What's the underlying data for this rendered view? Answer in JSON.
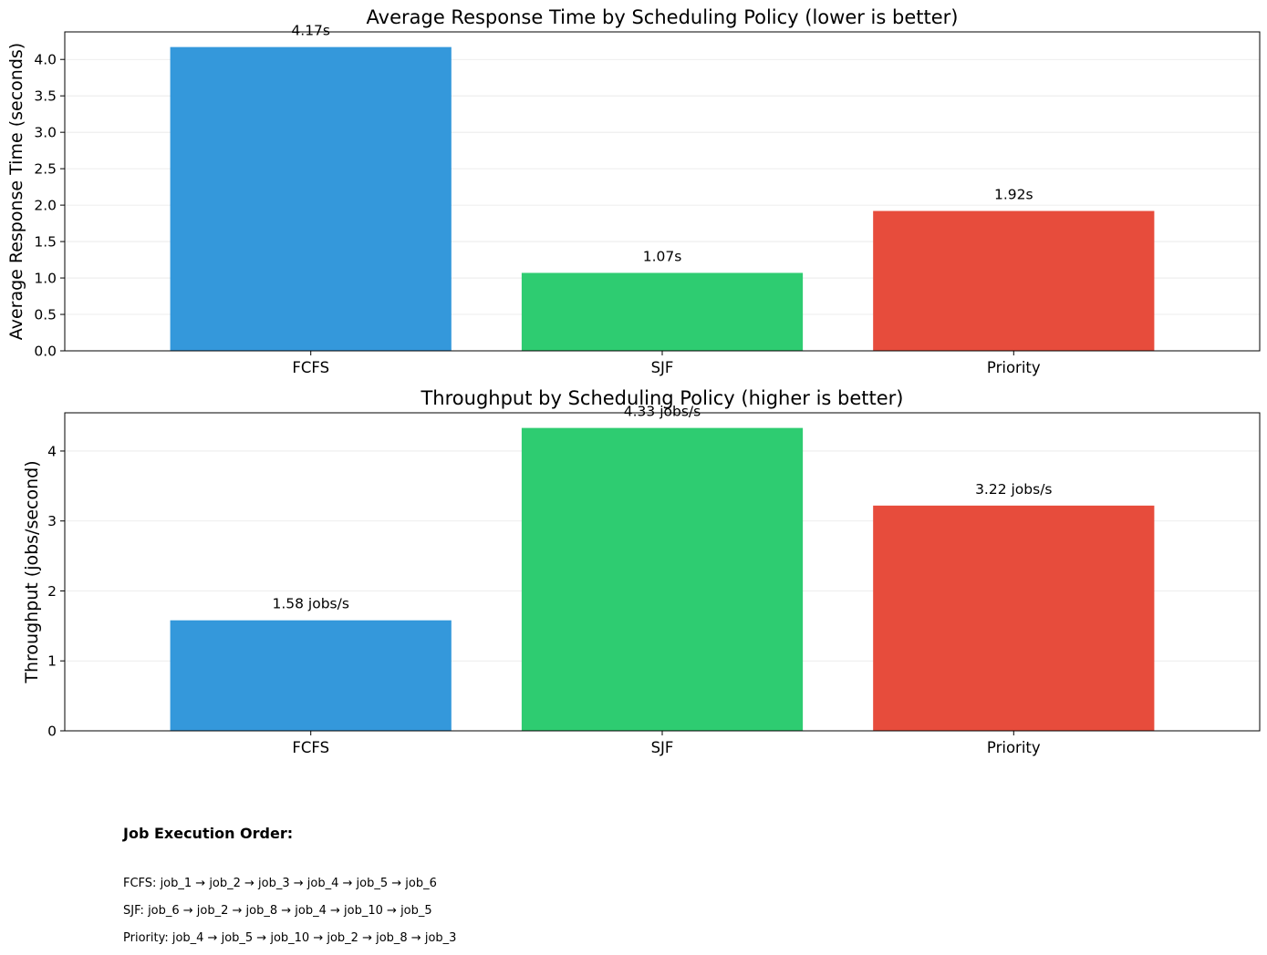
{
  "chart_data": [
    {
      "type": "bar",
      "title": "Average Response Time by Scheduling Policy (lower is better)",
      "xlabel": "",
      "ylabel": "Average Response Time (seconds)",
      "categories": [
        "FCFS",
        "SJF",
        "Priority"
      ],
      "values": [
        4.17,
        1.07,
        1.92
      ],
      "data_labels": [
        "4.17s",
        "1.07s",
        "1.92s"
      ],
      "colors": [
        "#3498db",
        "#2ecc71",
        "#e74c3c"
      ],
      "ylim": [
        0,
        4.378
      ],
      "yticks": [
        0.0,
        0.5,
        1.0,
        1.5,
        2.0,
        2.5,
        3.0,
        3.5,
        4.0
      ],
      "ytick_labels": [
        "0.0",
        "0.5",
        "1.0",
        "1.5",
        "2.0",
        "2.5",
        "3.0",
        "3.5",
        "4.0"
      ],
      "grid": "y"
    },
    {
      "type": "bar",
      "title": "Throughput by Scheduling Policy (higher is better)",
      "xlabel": "",
      "ylabel": "Throughput (jobs/second)",
      "categories": [
        "FCFS",
        "SJF",
        "Priority"
      ],
      "values": [
        1.58,
        4.33,
        3.22
      ],
      "data_labels": [
        "1.58 jobs/s",
        "4.33 jobs/s",
        "3.22 jobs/s"
      ],
      "colors": [
        "#3498db",
        "#2ecc71",
        "#e74c3c"
      ],
      "ylim": [
        0,
        4.5465
      ],
      "yticks": [
        0,
        1,
        2,
        3,
        4
      ],
      "ytick_labels": [
        "0",
        "1",
        "2",
        "3",
        "4"
      ],
      "grid": "y"
    }
  ],
  "execution_order": {
    "title": "Job Execution Order:",
    "lines": [
      "FCFS: job_1 → job_2 → job_3 → job_4 → job_5 → job_6",
      "SJF: job_6 → job_2 → job_8 → job_4 → job_10 → job_5",
      "Priority: job_4 → job_5 → job_10 → job_2 → job_8 → job_3"
    ]
  }
}
